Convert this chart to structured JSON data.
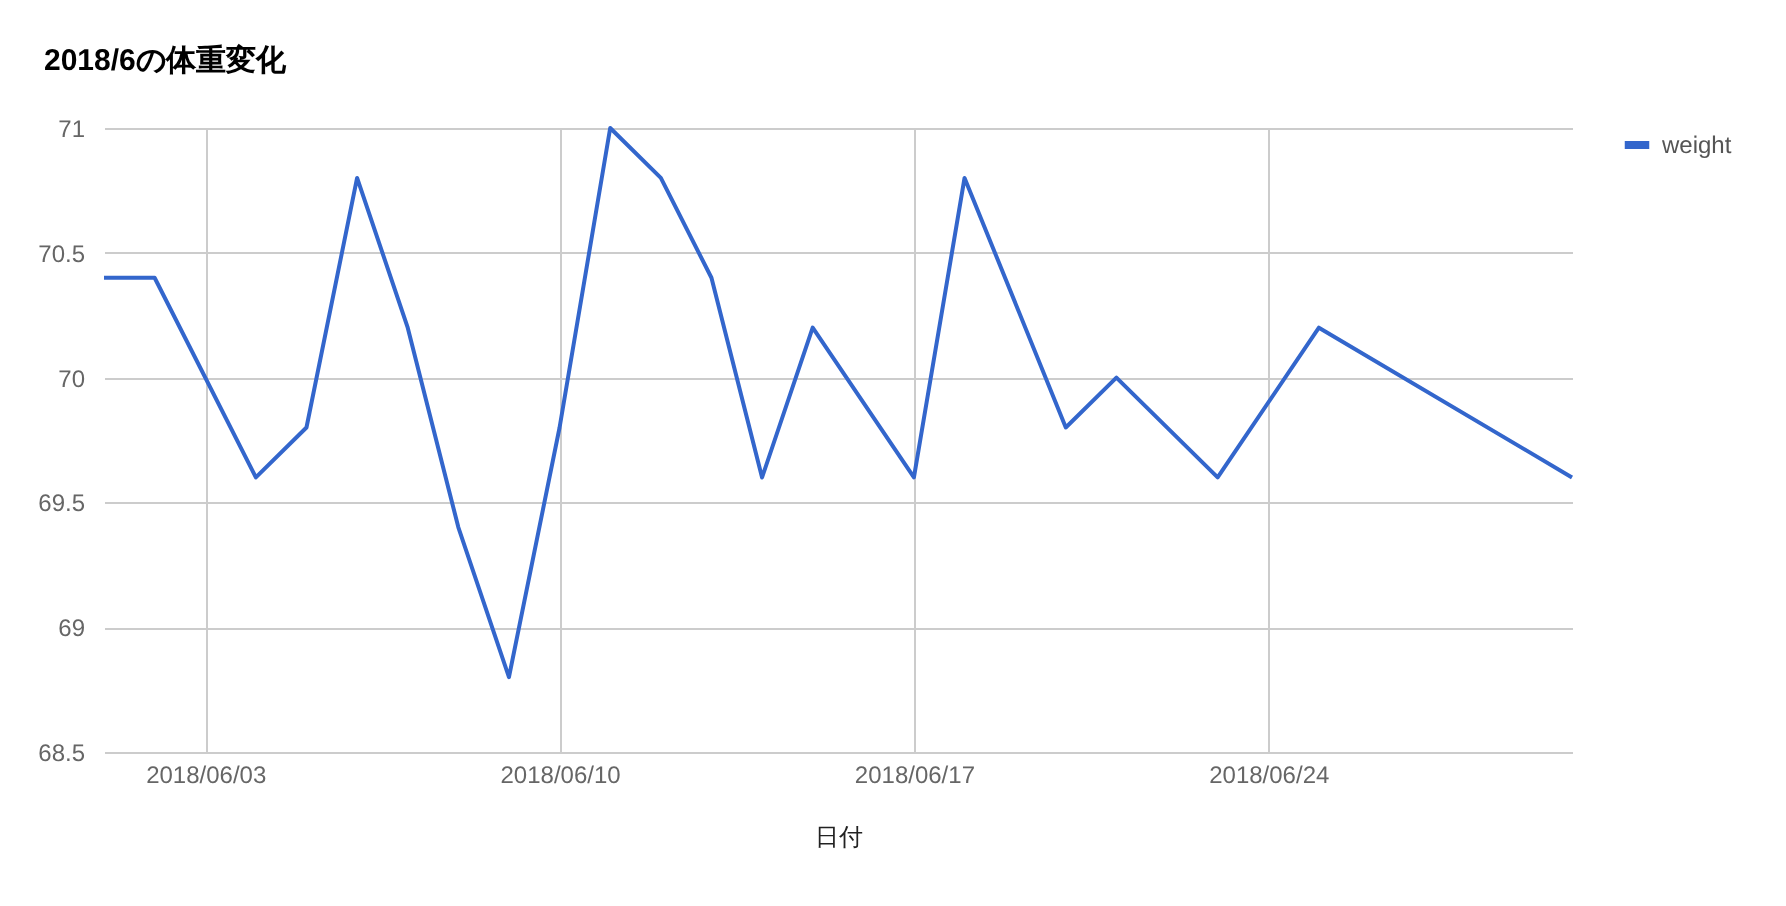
{
  "chart_data": {
    "type": "line",
    "title": "2018/6の体重変化",
    "xlabel": "日付",
    "x": [
      "2018-06-01",
      "2018-06-02",
      "2018-06-04",
      "2018-06-05",
      "2018-06-06",
      "2018-06-07",
      "2018-06-08",
      "2018-06-09",
      "2018-06-10",
      "2018-06-11",
      "2018-06-12",
      "2018-06-13",
      "2018-06-14",
      "2018-06-15",
      "2018-06-17",
      "2018-06-18",
      "2018-06-20",
      "2018-06-21",
      "2018-06-23",
      "2018-06-25",
      "2018-06-30"
    ],
    "series": [
      {
        "name": "weight",
        "color": "#3366cc",
        "values": [
          70.4,
          70.4,
          69.6,
          69.8,
          70.8,
          70.2,
          69.4,
          68.8,
          69.8,
          71,
          70.8,
          70.4,
          69.6,
          70.2,
          69.6,
          70.8,
          69.8,
          70,
          69.6,
          70.2,
          69.6
        ]
      }
    ],
    "xlim": [
      "2018-06-01",
      "2018-06-30"
    ],
    "xticks": [
      {
        "value": "2018-06-03",
        "label": "2018/06/03"
      },
      {
        "value": "2018-06-10",
        "label": "2018/06/10"
      },
      {
        "value": "2018-06-17",
        "label": "2018/06/17"
      },
      {
        "value": "2018-06-24",
        "label": "2018/06/24"
      }
    ],
    "ylim": [
      68.5,
      71
    ],
    "yticks": [
      68.5,
      69,
      69.5,
      70,
      70.5,
      71
    ],
    "grid": true,
    "legend": "top right",
    "marker": "none",
    "line_style": "solid"
  }
}
